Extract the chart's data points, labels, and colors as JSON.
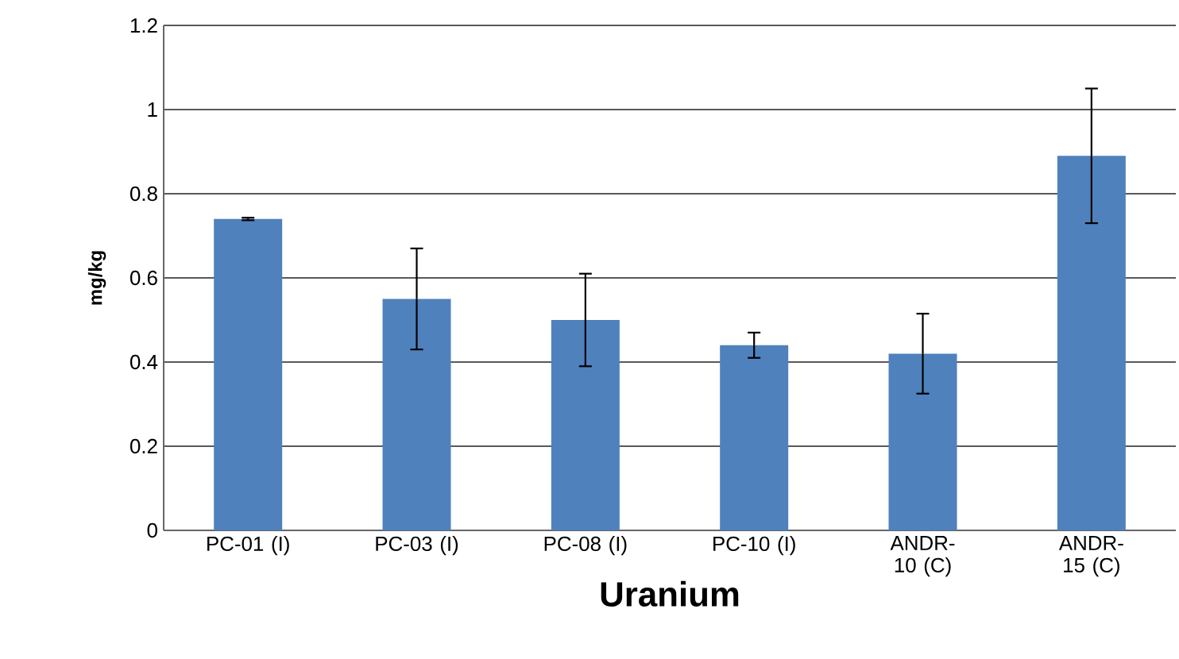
{
  "chart_data": {
    "type": "bar",
    "xlabel": "Uranium",
    "ylabel": "mg/kg",
    "categories": [
      "PC-01 (I)",
      "PC-03 (I)",
      "PC-08 (I)",
      "PC-10 (I)",
      "ANDR-10 (C)",
      "ANDR-15 (C)"
    ],
    "values": [
      0.74,
      0.55,
      0.5,
      0.44,
      0.42,
      0.89
    ],
    "errors": [
      0.003,
      0.12,
      0.11,
      0.03,
      0.095,
      0.16
    ],
    "color": "#4f81bd",
    "ylim": [
      0,
      1.2
    ],
    "yticks": [
      0,
      0.2,
      0.4,
      0.6,
      0.8,
      1,
      1.2
    ],
    "grid": "y"
  }
}
